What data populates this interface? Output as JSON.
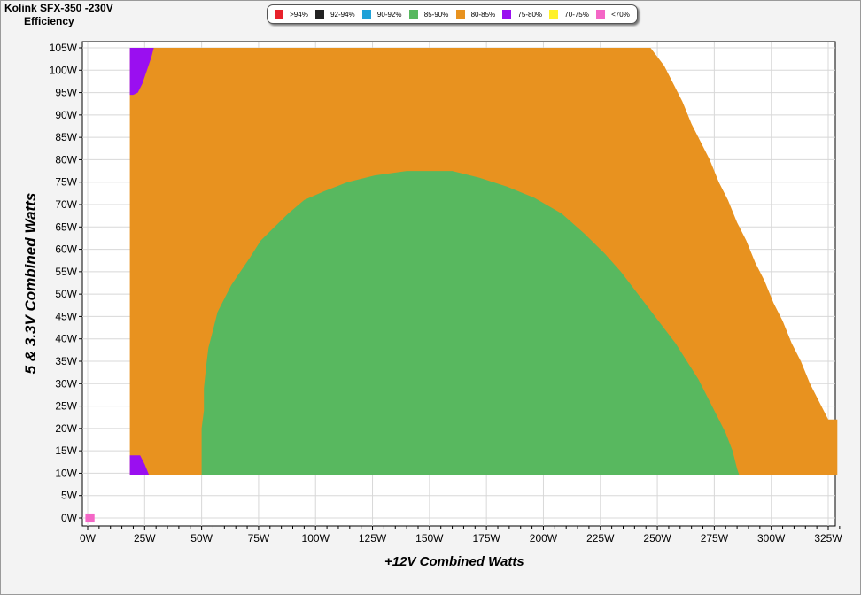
{
  "header": {
    "model": "Kolink SFX-350 -230V",
    "subtitle": "Efficiency"
  },
  "chart_data": {
    "type": "heatmap",
    "xlabel": "+12V Combined Watts",
    "ylabel": "5 & 3.3V Combined Watts",
    "xlim": [
      -1,
      330
    ],
    "ylim": [
      -2,
      105
    ],
    "x_ticks": [
      "0W",
      "25W",
      "50W",
      "75W",
      "100W",
      "125W",
      "150W",
      "175W",
      "200W",
      "225W",
      "250W",
      "275W",
      "300W",
      "325W"
    ],
    "y_ticks": [
      "0W",
      "5W",
      "10W",
      "15W",
      "20W",
      "25W",
      "30W",
      "35W",
      "40W",
      "45W",
      "50W",
      "55W",
      "60W",
      "65W",
      "70W",
      "75W",
      "80W",
      "85W",
      "90W",
      "95W",
      "100W",
      "105W"
    ],
    "legend": [
      {
        "label": ">94%",
        "color": "#e8212b"
      },
      {
        "label": "92-94%",
        "color": "#222222"
      },
      {
        "label": "90-92%",
        "color": "#1fa1d8"
      },
      {
        "label": "85-90%",
        "color": "#58b85f"
      },
      {
        "label": "80-85%",
        "color": "#e8921f"
      },
      {
        "label": "75-80%",
        "color": "#9a0ff0"
      },
      {
        "label": "70-75%",
        "color": "#fff12a"
      },
      {
        "label": "<70%",
        "color": "#f466c6"
      }
    ],
    "regions": {
      "load_region_80_85": {
        "x_start": 18.5,
        "y_min": 9.5,
        "upper_boundary": [
          [
            18.5,
            105
          ],
          [
            247,
            105
          ],
          [
            253,
            101
          ],
          [
            257,
            97
          ],
          [
            261,
            93
          ],
          [
            265,
            88
          ],
          [
            269,
            84
          ],
          [
            273,
            80
          ],
          [
            277,
            75
          ],
          [
            281,
            71
          ],
          [
            285,
            66
          ],
          [
            289,
            62
          ],
          [
            293,
            57
          ],
          [
            297,
            53
          ],
          [
            301,
            48
          ],
          [
            305,
            44
          ],
          [
            309,
            39
          ],
          [
            313,
            35
          ],
          [
            317,
            30
          ],
          [
            321,
            26
          ],
          [
            325,
            22
          ],
          [
            329,
            22
          ],
          [
            329,
            9.5
          ]
        ]
      },
      "region_85_90": {
        "y_min": 9.5,
        "left_boundary": [
          [
            50,
            9.5
          ],
          [
            50,
            16
          ],
          [
            50,
            20
          ],
          [
            51,
            24
          ],
          [
            51,
            29
          ],
          [
            52,
            34
          ],
          [
            53,
            38
          ],
          [
            55,
            42
          ],
          [
            57,
            46
          ],
          [
            60,
            49
          ],
          [
            63,
            52
          ],
          [
            67,
            55
          ],
          [
            71,
            58
          ],
          [
            76,
            62
          ],
          [
            82,
            65
          ],
          [
            88,
            68
          ],
          [
            95,
            71
          ],
          [
            104,
            73
          ],
          [
            114,
            75
          ],
          [
            126,
            76.5
          ],
          [
            140,
            77.5
          ],
          [
            150,
            77.5
          ]
        ],
        "right_boundary": [
          [
            150,
            77.5
          ],
          [
            160,
            77.5
          ],
          [
            172,
            76
          ],
          [
            184,
            74
          ],
          [
            196,
            71.5
          ],
          [
            208,
            68
          ],
          [
            218,
            63.5
          ],
          [
            227,
            59
          ],
          [
            234,
            55
          ],
          [
            240,
            51
          ],
          [
            246,
            47
          ],
          [
            252,
            43
          ],
          [
            258,
            39
          ],
          [
            263,
            35
          ],
          [
            268,
            31
          ],
          [
            272,
            27
          ],
          [
            276,
            23
          ],
          [
            280,
            19
          ],
          [
            283,
            15
          ],
          [
            285,
            11
          ],
          [
            286,
            9.5
          ]
        ]
      },
      "purple_top": [
        [
          18.5,
          105
        ],
        [
          29,
          105
        ],
        [
          28,
          103
        ],
        [
          26,
          100
        ],
        [
          24,
          97
        ],
        [
          22,
          95
        ],
        [
          20,
          94.5
        ],
        [
          18.5,
          94.5
        ]
      ],
      "purple_bottom": [
        [
          18.5,
          9.5
        ],
        [
          18.5,
          14
        ],
        [
          23,
          14
        ],
        [
          25,
          12
        ],
        [
          27,
          9.5
        ]
      ],
      "pink_point": {
        "x": 1,
        "y": 0,
        "w": 4,
        "h": 2
      }
    }
  }
}
